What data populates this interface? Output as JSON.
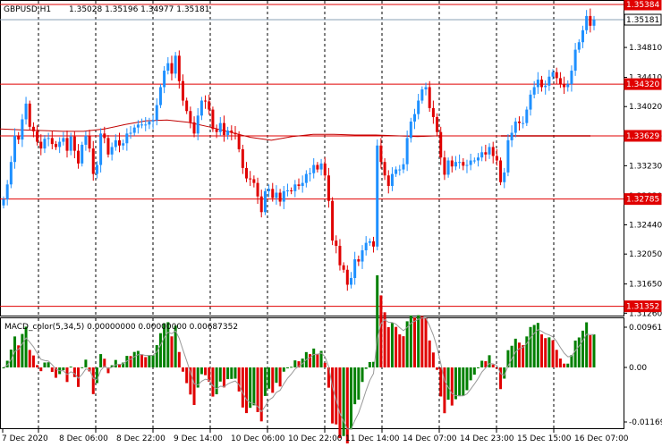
{
  "header": {
    "symbol": "GBPUSD,H1",
    "ohlc": "1.35028 1.35196 1.34977 1.35181"
  },
  "macd": {
    "label": "MACD_color(5,34,5) 0.00000000 0.00000000 0.00687352"
  },
  "colors": {
    "bull": "#1e90ff",
    "bear": "#e00000",
    "level_line": "#e00000",
    "ma_line": "#c00000",
    "grid": "#000000",
    "hist_up": "#008000",
    "hist_down": "#e00000",
    "signal": "#999999"
  },
  "price_axis": {
    "ticks": [
      "1.34810",
      "1.34410",
      "1.34020",
      "1.33620",
      "1.33230",
      "1.32830",
      "1.32440",
      "1.32050",
      "1.31650",
      "1.31260"
    ],
    "tags": [
      {
        "text": "1.35384",
        "price": 1.35384,
        "color": "#e00000"
      },
      {
        "text": "1.35181",
        "price": 1.35181,
        "color": "#000000",
        "fill": "#ffffff"
      },
      {
        "text": "1.34320",
        "price": 1.3432,
        "color": "#e00000"
      },
      {
        "text": "1.33629",
        "price": 1.33629,
        "color": "#e00000"
      },
      {
        "text": "1.32785",
        "price": 1.32785,
        "color": "#e00000"
      },
      {
        "text": "1.31352",
        "price": 1.31352,
        "color": "#e00000"
      }
    ]
  },
  "macd_axis": {
    "ticks": [
      "0.0096152",
      "0.00",
      "-0.0116988"
    ]
  },
  "time_axis": {
    "labels": [
      "7 Dec 2020",
      "8 Dec 06:00",
      "8 Dec 22:00",
      "9 Dec 14:00",
      "10 Dec 06:00",
      "10 Dec 22:00",
      "11 Dec 14:00",
      "14 Dec 07:00",
      "14 Dec 23:00",
      "15 Dec 15:00",
      "16 Dec 07:00"
    ]
  },
  "chart_data": {
    "type": "candlestick",
    "title": "GBPUSD,H1",
    "ylim": [
      1.3124,
      1.3542
    ],
    "levels": [
      1.35384,
      1.3432,
      1.33629,
      1.32785,
      1.31352
    ],
    "current_price": 1.35181,
    "ma_points": [
      1.3372,
      1.3371,
      1.337,
      1.3369,
      1.3369,
      1.3372,
      1.3378,
      1.3383,
      1.3384,
      1.3381,
      1.3375,
      1.3368,
      1.3361,
      1.3357,
      1.3362,
      1.3365,
      1.3365,
      1.3364,
      1.3364,
      1.3363,
      1.3362,
      1.3363
    ],
    "closes": [
      1.3278,
      1.3298,
      1.3328,
      1.3363,
      1.3358,
      1.3385,
      1.3406,
      1.3375,
      1.3369,
      1.3355,
      1.3346,
      1.3359,
      1.336,
      1.3352,
      1.3348,
      1.3355,
      1.336,
      1.3343,
      1.3362,
      1.3343,
      1.3326,
      1.3351,
      1.3363,
      1.3346,
      1.3312,
      1.3324,
      1.3366,
      1.336,
      1.3338,
      1.3348,
      1.3357,
      1.335,
      1.3353,
      1.3366,
      1.3367,
      1.3374,
      1.3378,
      1.3378,
      1.3378,
      1.3382,
      1.3384,
      1.3404,
      1.3428,
      1.345,
      1.346,
      1.3446,
      1.347,
      1.3436,
      1.341,
      1.3396,
      1.3381,
      1.3366,
      1.339,
      1.341,
      1.3409,
      1.3398,
      1.3372,
      1.3368,
      1.338,
      1.3364,
      1.337,
      1.3367,
      1.3365,
      1.3345,
      1.332,
      1.3306,
      1.3305,
      1.33,
      1.3282,
      1.3261,
      1.3289,
      1.3292,
      1.328,
      1.3287,
      1.3275,
      1.3289,
      1.329,
      1.3289,
      1.3298,
      1.3296,
      1.33,
      1.3312,
      1.3313,
      1.3324,
      1.3318,
      1.3326,
      1.331,
      1.3276,
      1.3223,
      1.3216,
      1.319,
      1.3184,
      1.3164,
      1.3173,
      1.3198,
      1.3195,
      1.321,
      1.322,
      1.3222,
      1.3215,
      1.335,
      1.3328,
      1.331,
      1.3296,
      1.3312,
      1.3318,
      1.3318,
      1.3325,
      1.336,
      1.3382,
      1.3392,
      1.341,
      1.3425,
      1.3428,
      1.34,
      1.3388,
      1.3368,
      1.3334,
      1.3311,
      1.333,
      1.3322,
      1.3328,
      1.3328,
      1.3323,
      1.3324,
      1.333,
      1.333,
      1.3334,
      1.3341,
      1.3338,
      1.3348,
      1.3336,
      1.333,
      1.3301,
      1.3314,
      1.3357,
      1.3367,
      1.3382,
      1.338,
      1.338,
      1.3398,
      1.3418,
      1.3428,
      1.3438,
      1.3428,
      1.343,
      1.3442,
      1.3448,
      1.344,
      1.3432,
      1.3428,
      1.3432,
      1.345,
      1.3478,
      1.3488,
      1.3504,
      1.3523,
      1.351,
      1.3518
    ]
  }
}
